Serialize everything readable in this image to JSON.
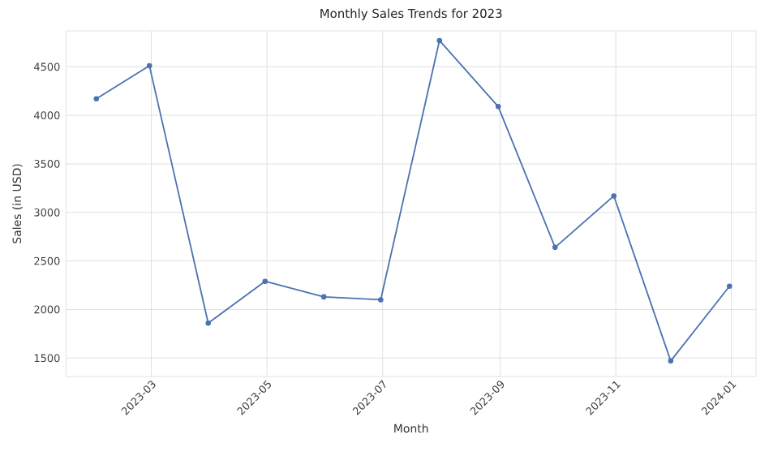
{
  "chart_data": {
    "type": "line",
    "title": "Monthly Sales Trends for 2023",
    "xlabel": "Month",
    "ylabel": "Sales (in USD)",
    "x": [
      "2023-01-31",
      "2023-02-28",
      "2023-03-31",
      "2023-04-30",
      "2023-05-31",
      "2023-06-30",
      "2023-07-31",
      "2023-08-31",
      "2023-09-30",
      "2023-10-31",
      "2023-11-30",
      "2023-12-31"
    ],
    "series": [
      {
        "color": "#4c72b0",
        "values": [
          4170,
          4510,
          1860,
          2290,
          2130,
          2100,
          4770,
          4090,
          2640,
          3170,
          1470,
          2240
        ]
      }
    ],
    "xlim": [
      "2023-01-15",
      "2024-01-14"
    ],
    "xticks": [
      {
        "value": "2023-03",
        "label": "2023-03"
      },
      {
        "value": "2023-05",
        "label": "2023-05"
      },
      {
        "value": "2023-07",
        "label": "2023-07"
      },
      {
        "value": "2023-09",
        "label": "2023-09"
      },
      {
        "value": "2023-11",
        "label": "2023-11"
      },
      {
        "value": "2024-01",
        "label": "2024-01"
      }
    ],
    "ylim": [
      1310,
      4870
    ],
    "yticks": [
      1500,
      2000,
      2500,
      3000,
      3500,
      4000,
      4500
    ],
    "grid": true,
    "marker": "circle",
    "line_style": "solid"
  }
}
